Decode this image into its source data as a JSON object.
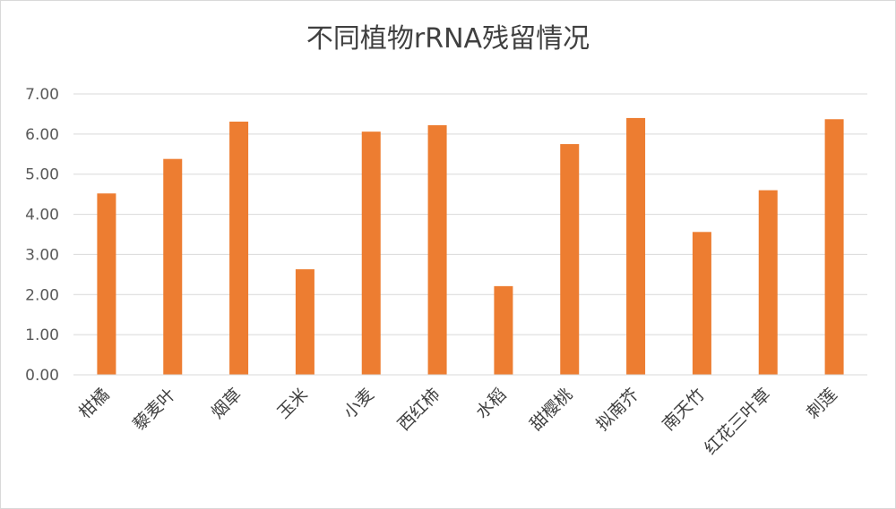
{
  "chart_data": {
    "type": "bar",
    "title": "不同植物rRNA残留情况",
    "categories": [
      "柑橘",
      "藜麦叶",
      "烟草",
      "玉米",
      "小麦",
      "西红柿",
      "水稻",
      "甜樱桃",
      "拟南芥",
      "南天竹",
      "红花三叶草",
      "刺莲"
    ],
    "values": [
      4.52,
      5.38,
      6.31,
      2.63,
      6.06,
      6.22,
      2.21,
      5.75,
      6.4,
      3.56,
      4.6,
      6.37
    ],
    "ylim": [
      0,
      7
    ],
    "yticks": [
      "0.00",
      "1.00",
      "2.00",
      "3.00",
      "4.00",
      "5.00",
      "6.00",
      "7.00"
    ],
    "ytick_values": [
      0,
      1,
      2,
      3,
      4,
      5,
      6,
      7
    ],
    "bar_color": "#ED7D31",
    "grid_color": "#D9D9D9",
    "grid": true,
    "legend": "none"
  }
}
